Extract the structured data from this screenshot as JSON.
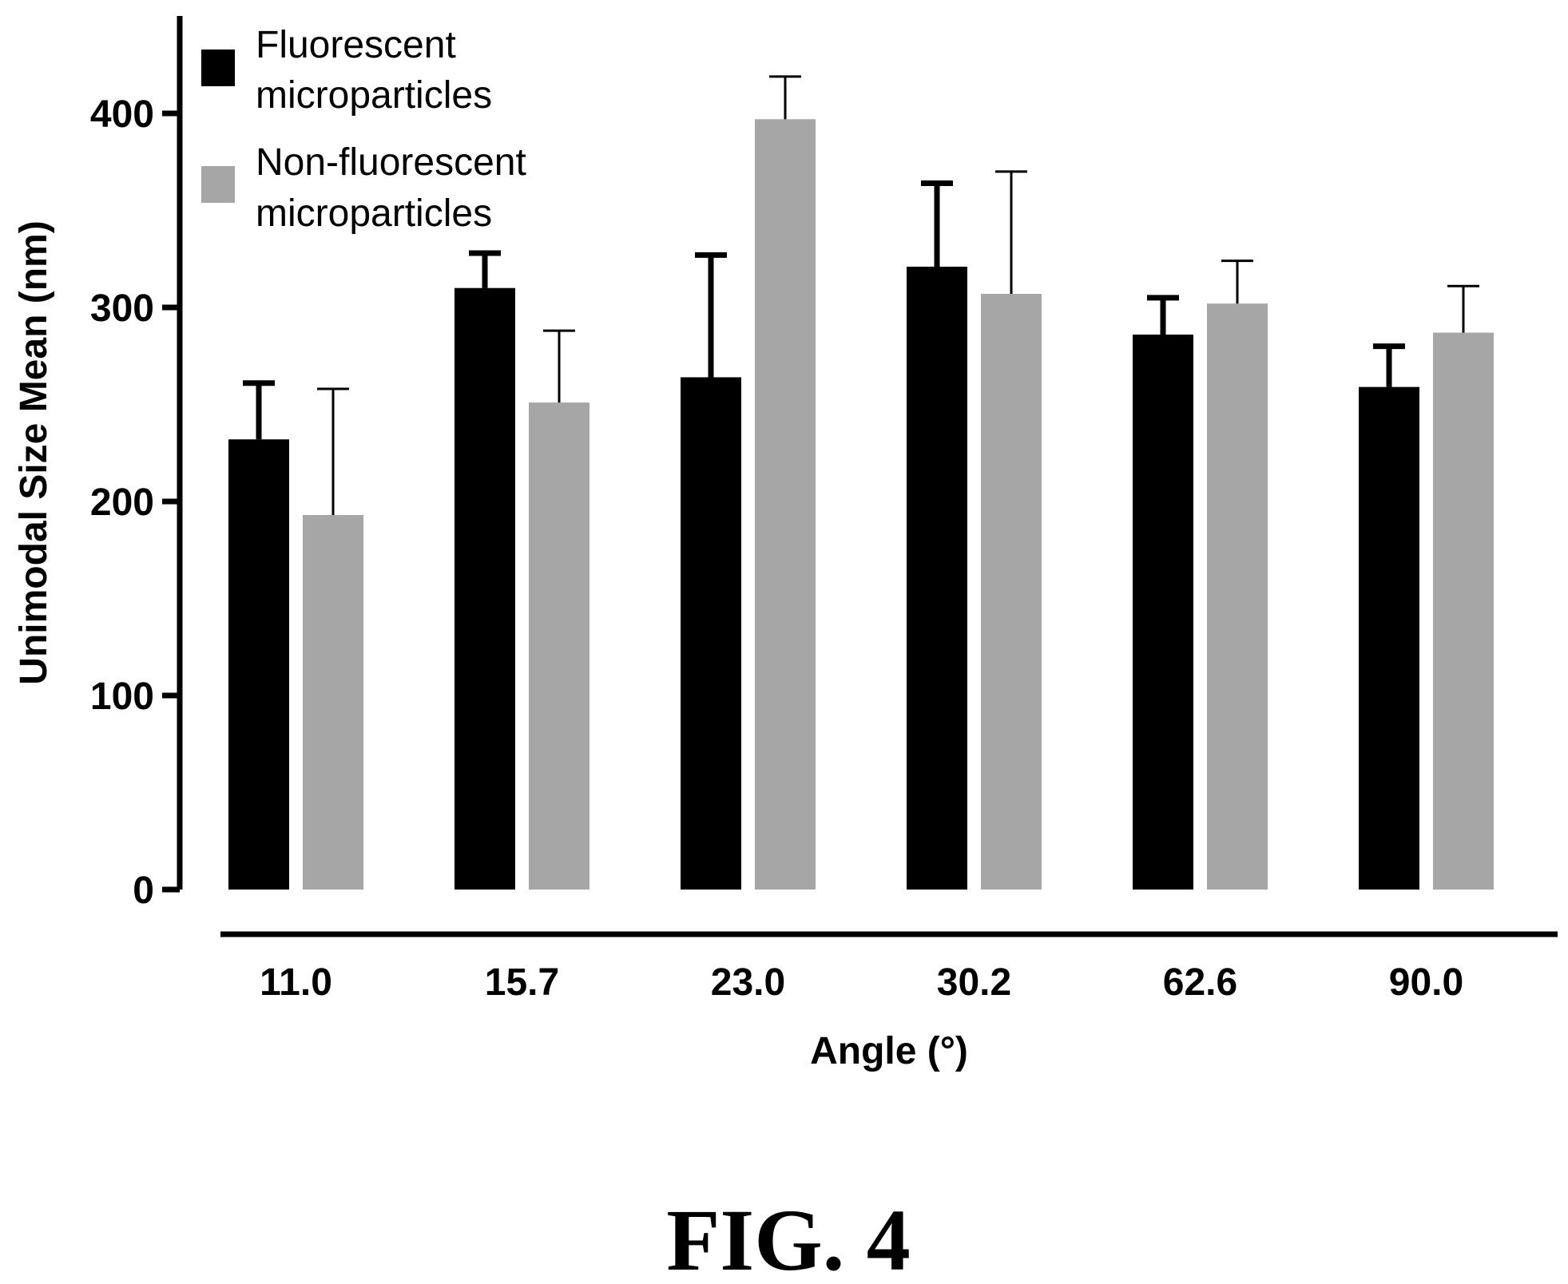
{
  "chart_data": {
    "type": "bar",
    "categories": [
      "11.0",
      "15.7",
      "23.0",
      "30.2",
      "62.6",
      "90.0"
    ],
    "series": [
      {
        "name": "Fluorescent microparticles",
        "name_lines": [
          "Fluorescent",
          "microparticles"
        ],
        "color": "#000000",
        "values": [
          232,
          310,
          264,
          321,
          286,
          259
        ],
        "errors": [
          29,
          18,
          63,
          43,
          19,
          21
        ]
      },
      {
        "name": "Non-fluorescent microparticles",
        "name_lines": [
          "Non-fluorescent",
          "microparticles"
        ],
        "color": "#a6a6a6",
        "values": [
          193,
          251,
          397,
          307,
          302,
          287
        ],
        "errors": [
          65,
          37,
          22,
          63,
          22,
          24
        ]
      }
    ],
    "xlabel": "Angle (°)",
    "ylabel": "Unimodal Size Mean (nm)",
    "ylim": [
      0,
      450
    ],
    "yticks": [
      0,
      100,
      200,
      300,
      400
    ],
    "ytick_labels": [
      "0",
      "100",
      "200",
      "300",
      "400"
    ],
    "legend_position": "top-left",
    "grid": false
  },
  "caption": "FIG. 4"
}
